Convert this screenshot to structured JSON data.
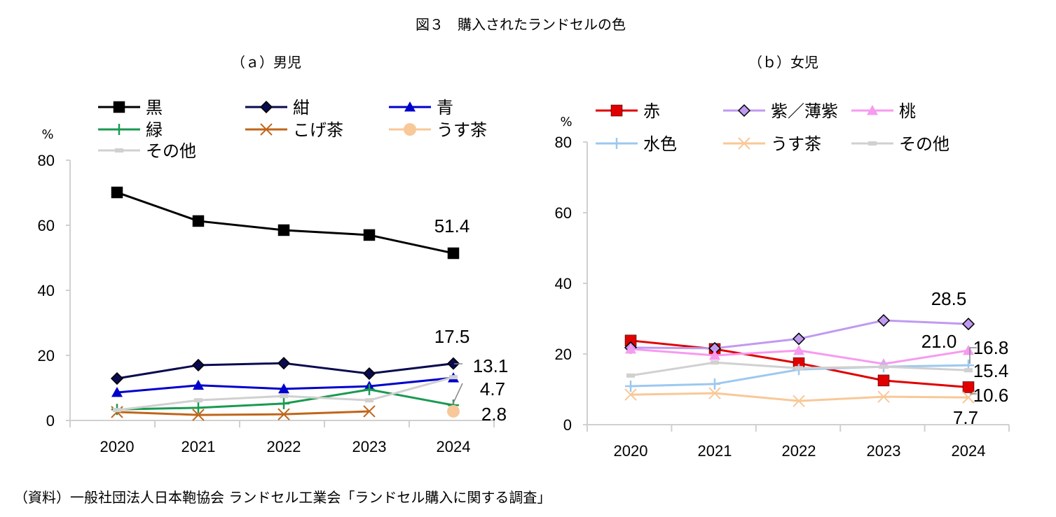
{
  "title": "図３　購入されたランドセルの色",
  "source": "（資料）一般社団法人日本鞄協会 ランドセル工業会「ランドセル購入に関する調査」",
  "chart_data": [
    {
      "type": "line",
      "title": "（ａ）男児",
      "ylabel": "%",
      "ylim": [
        0,
        80
      ],
      "yticks": [
        "0",
        "20",
        "40",
        "60",
        "80"
      ],
      "categories": [
        "2020",
        "2021",
        "2022",
        "2023",
        "2024"
      ],
      "grid": false,
      "legend": "top",
      "series": [
        {
          "name": "黒",
          "color": "#000000",
          "marker": "square",
          "values": [
            70.1,
            61.3,
            58.5,
            57.0,
            51.4
          ]
        },
        {
          "name": "紺",
          "color": "#0a0a50",
          "marker": "diamond",
          "values": [
            12.9,
            17.0,
            17.6,
            14.4,
            17.5
          ]
        },
        {
          "name": "青",
          "color": "#0000cc",
          "marker": "triangle",
          "values": [
            8.6,
            10.8,
            9.7,
            10.5,
            13.1
          ]
        },
        {
          "name": "緑",
          "color": "#1a9a50",
          "marker": "plus",
          "values": [
            3.4,
            3.9,
            5.2,
            9.5,
            4.7
          ]
        },
        {
          "name": "こげ茶",
          "color": "#c0651a",
          "marker": "x",
          "values": [
            2.6,
            1.7,
            1.9,
            2.8,
            null
          ]
        },
        {
          "name": "うす茶",
          "color": "#f8c898",
          "marker": "circle",
          "values": [
            null,
            null,
            null,
            null,
            2.8
          ]
        },
        {
          "name": "その他",
          "color": "#d0d0d0",
          "marker": "dash",
          "values": [
            3.2,
            6.2,
            7.5,
            6.2,
            13.3
          ]
        }
      ],
      "annotations": [
        "51.4",
        "17.5",
        "13.1",
        "4.7",
        "2.8"
      ]
    },
    {
      "type": "line",
      "title": "（ｂ）女児",
      "ylabel": "%",
      "ylim": [
        0,
        80
      ],
      "yticks": [
        "0",
        "20",
        "40",
        "60",
        "80"
      ],
      "categories": [
        "2020",
        "2021",
        "2022",
        "2023",
        "2024"
      ],
      "grid": false,
      "legend": "top",
      "series": [
        {
          "name": "赤",
          "color": "#e00000",
          "marker": "square",
          "values": [
            23.8,
            21.4,
            17.4,
            12.5,
            10.6
          ]
        },
        {
          "name": "紫／薄紫",
          "color": "#c09af0",
          "marker": "diamond",
          "values": [
            21.8,
            21.6,
            24.3,
            29.5,
            28.5
          ]
        },
        {
          "name": "桃",
          "color": "#f79af0",
          "marker": "triangle",
          "values": [
            21.4,
            19.6,
            21.0,
            17.2,
            21.0
          ]
        },
        {
          "name": "水色",
          "color": "#9cc8f0",
          "marker": "plus",
          "values": [
            10.9,
            11.5,
            15.6,
            16.4,
            16.8
          ]
        },
        {
          "name": "うす茶",
          "color": "#f8c898",
          "marker": "x",
          "values": [
            8.5,
            8.9,
            6.7,
            7.9,
            7.7
          ]
        },
        {
          "name": "その他",
          "color": "#d0d0d0",
          "marker": "dash",
          "values": [
            13.9,
            17.6,
            16.0,
            16.4,
            15.4
          ]
        }
      ],
      "annotations": [
        "28.5",
        "21.0",
        "16.8",
        "15.4",
        "10.6",
        "7.7"
      ]
    }
  ]
}
